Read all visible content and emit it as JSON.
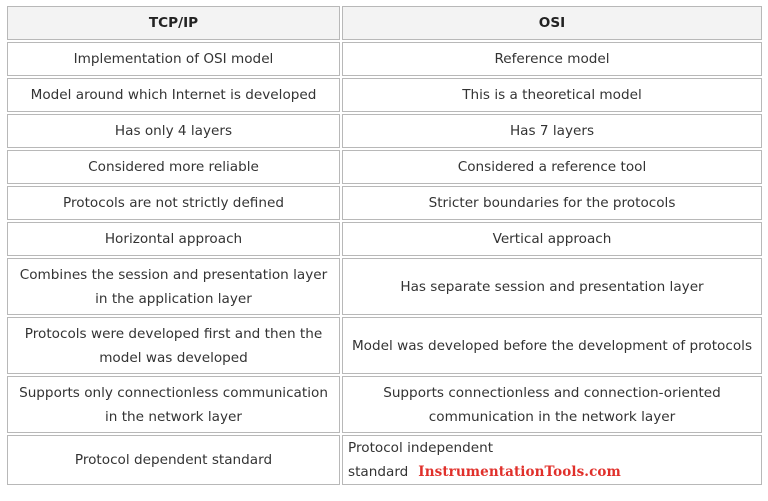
{
  "table": {
    "headers": [
      "TCP/IP",
      "OSI"
    ],
    "rows": [
      [
        "Implementation of OSI model",
        "Reference model"
      ],
      [
        "Model around which Internet is developed",
        "This is a theoretical model"
      ],
      [
        "Has only 4 layers",
        "Has 7 layers"
      ],
      [
        "Considered more reliable",
        "Considered a reference tool"
      ],
      [
        "Protocols are not strictly defined",
        "Stricter boundaries for the protocols"
      ],
      [
        "Horizontal approach",
        "Vertical approach"
      ],
      [
        "Combines the session and presentation layer in the application layer",
        "Has separate session and presentation layer"
      ],
      [
        "Protocols were developed first and then the model was developed",
        "Model was developed before the development of protocols"
      ],
      [
        "Supports only connectionless communication in the network layer",
        "Supports connectionless and connection-oriented communication in the network layer"
      ],
      [
        "Protocol dependent standard",
        "Protocol independent standard"
      ]
    ]
  },
  "watermark": "InstrumentationTools.com",
  "colors": {
    "border": "#b8b8b8",
    "header_bg": "#f3f3f3",
    "text": "#333333",
    "watermark": "#e0302b"
  }
}
